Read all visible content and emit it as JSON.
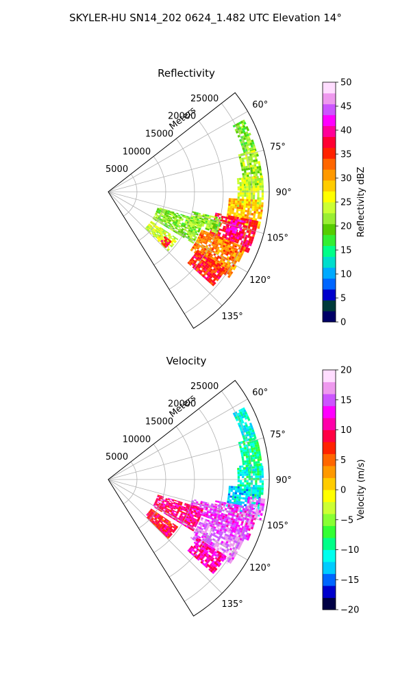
{
  "figure": {
    "suptitle": "SKYLER-HU  SN14_202  0624_1.482 UTC Elevation 14°"
  },
  "colormaps": {
    "reflectivity": [
      "#000066",
      "#003a3a",
      "#0000cc",
      "#0066ff",
      "#00aaff",
      "#00ddcc",
      "#00ff88",
      "#33ee33",
      "#55cc00",
      "#99ee33",
      "#ccff33",
      "#ffff00",
      "#ffcc00",
      "#ff9900",
      "#ff6600",
      "#ff2200",
      "#ff0033",
      "#ff0099",
      "#ff00ff",
      "#cc55ff",
      "#ee99ee",
      "#ffddff"
    ],
    "velocity": [
      "#000044",
      "#0000cc",
      "#0066ff",
      "#00ccff",
      "#00ffee",
      "#00ff88",
      "#33ff33",
      "#88ff33",
      "#ccff33",
      "#ffff00",
      "#ffcc00",
      "#ff9900",
      "#ff6600",
      "#ff2200",
      "#ff0044",
      "#ff00aa",
      "#ff00ff",
      "#cc55ff",
      "#ee99ee",
      "#ffddff"
    ]
  },
  "chart_data": [
    {
      "type": "heatmap",
      "subtype": "polar-sector (radar PPI)",
      "title": "Reflectivity",
      "radial_label": "Meters",
      "theta_range_deg": [
        52,
        148
      ],
      "r_range": [
        0,
        28000
      ],
      "r_ticks": [
        5000,
        10000,
        15000,
        20000,
        25000
      ],
      "theta_ticks": [
        60,
        75,
        90,
        105,
        120,
        135
      ],
      "theta_tick_labels": [
        "60°",
        "75°",
        "90°",
        "105°",
        "120°",
        "135°"
      ],
      "grid": true,
      "colorbar": {
        "label": "Reflectivity dBZ",
        "range": [
          0,
          50
        ],
        "ticks": [
          0,
          5,
          10,
          15,
          20,
          25,
          30,
          35,
          40,
          45,
          50
        ]
      },
      "echo_regions": [
        {
          "theta": [
            62,
            74
          ],
          "r": [
            24500,
            26500
          ],
          "value": 20
        },
        {
          "theta": [
            74,
            87
          ],
          "r": [
            23500,
            26800
          ],
          "value": 22
        },
        {
          "theta": [
            84,
            96
          ],
          "r": [
            22500,
            27000
          ],
          "value": 24
        },
        {
          "theta": [
            93,
            103
          ],
          "r": [
            21000,
            26800
          ],
          "value": 29
        },
        {
          "theta": [
            101,
            113
          ],
          "r": [
            19000,
            26500
          ],
          "value": 37
        },
        {
          "theta": [
            102,
            110
          ],
          "r": [
            21500,
            24500
          ],
          "value": 40
        },
        {
          "theta": [
            103,
            111
          ],
          "r": [
            15000,
            20000
          ],
          "value": 21
        },
        {
          "theta": [
            107,
            121
          ],
          "r": [
            9000,
            17000
          ],
          "value": 21
        },
        {
          "theta": [
            112,
            125
          ],
          "r": [
            17500,
            25500
          ],
          "value": 32
        },
        {
          "theta": [
            123,
            132
          ],
          "r": [
            18500,
            24500
          ],
          "value": 36
        },
        {
          "theta": [
            124,
            134
          ],
          "r": [
            9000,
            14500
          ],
          "value": 24
        },
        {
          "theta": [
            128,
            134
          ],
          "r": [
            12500,
            14000
          ],
          "value": 37
        }
      ]
    },
    {
      "type": "heatmap",
      "subtype": "polar-sector (radar PPI)",
      "title": "Velocity",
      "radial_label": "Meters",
      "theta_range_deg": [
        52,
        148
      ],
      "r_range": [
        0,
        28000
      ],
      "r_ticks": [
        5000,
        10000,
        15000,
        20000,
        25000
      ],
      "theta_ticks": [
        60,
        75,
        90,
        105,
        120,
        135
      ],
      "theta_tick_labels": [
        "60°",
        "75°",
        "90°",
        "105°",
        "120°",
        "135°"
      ],
      "grid": true,
      "colorbar": {
        "label": "Velocity (m/s)",
        "range": [
          -20,
          20
        ],
        "ticks": [
          -20,
          -15,
          -10,
          -5,
          0,
          5,
          10,
          15,
          20
        ]
      },
      "echo_regions": [
        {
          "theta": [
            62,
            74
          ],
          "r": [
            24500,
            26500
          ],
          "value": -11
        },
        {
          "theta": [
            74,
            87
          ],
          "r": [
            23500,
            26800
          ],
          "value": -9
        },
        {
          "theta": [
            84,
            96
          ],
          "r": [
            22500,
            27000
          ],
          "value": -10
        },
        {
          "theta": [
            93,
            103
          ],
          "r": [
            21000,
            26800
          ],
          "value": -12
        },
        {
          "theta": [
            97,
            105
          ],
          "r": [
            24500,
            27200
          ],
          "value": 16
        },
        {
          "theta": [
            101,
            113
          ],
          "r": [
            19000,
            26500
          ],
          "value": 14
        },
        {
          "theta": [
            103,
            111
          ],
          "r": [
            15000,
            20000
          ],
          "value": 14
        },
        {
          "theta": [
            107,
            121
          ],
          "r": [
            9000,
            17000
          ],
          "value": 10
        },
        {
          "theta": [
            112,
            125
          ],
          "r": [
            17500,
            25500
          ],
          "value": 16
        },
        {
          "theta": [
            123,
            132
          ],
          "r": [
            18500,
            24500
          ],
          "value": 11
        },
        {
          "theta": [
            124,
            134
          ],
          "r": [
            9000,
            14500
          ],
          "value": 8
        },
        {
          "theta": [
            128,
            134
          ],
          "r": [
            12500,
            14000
          ],
          "value": 10
        }
      ]
    }
  ]
}
